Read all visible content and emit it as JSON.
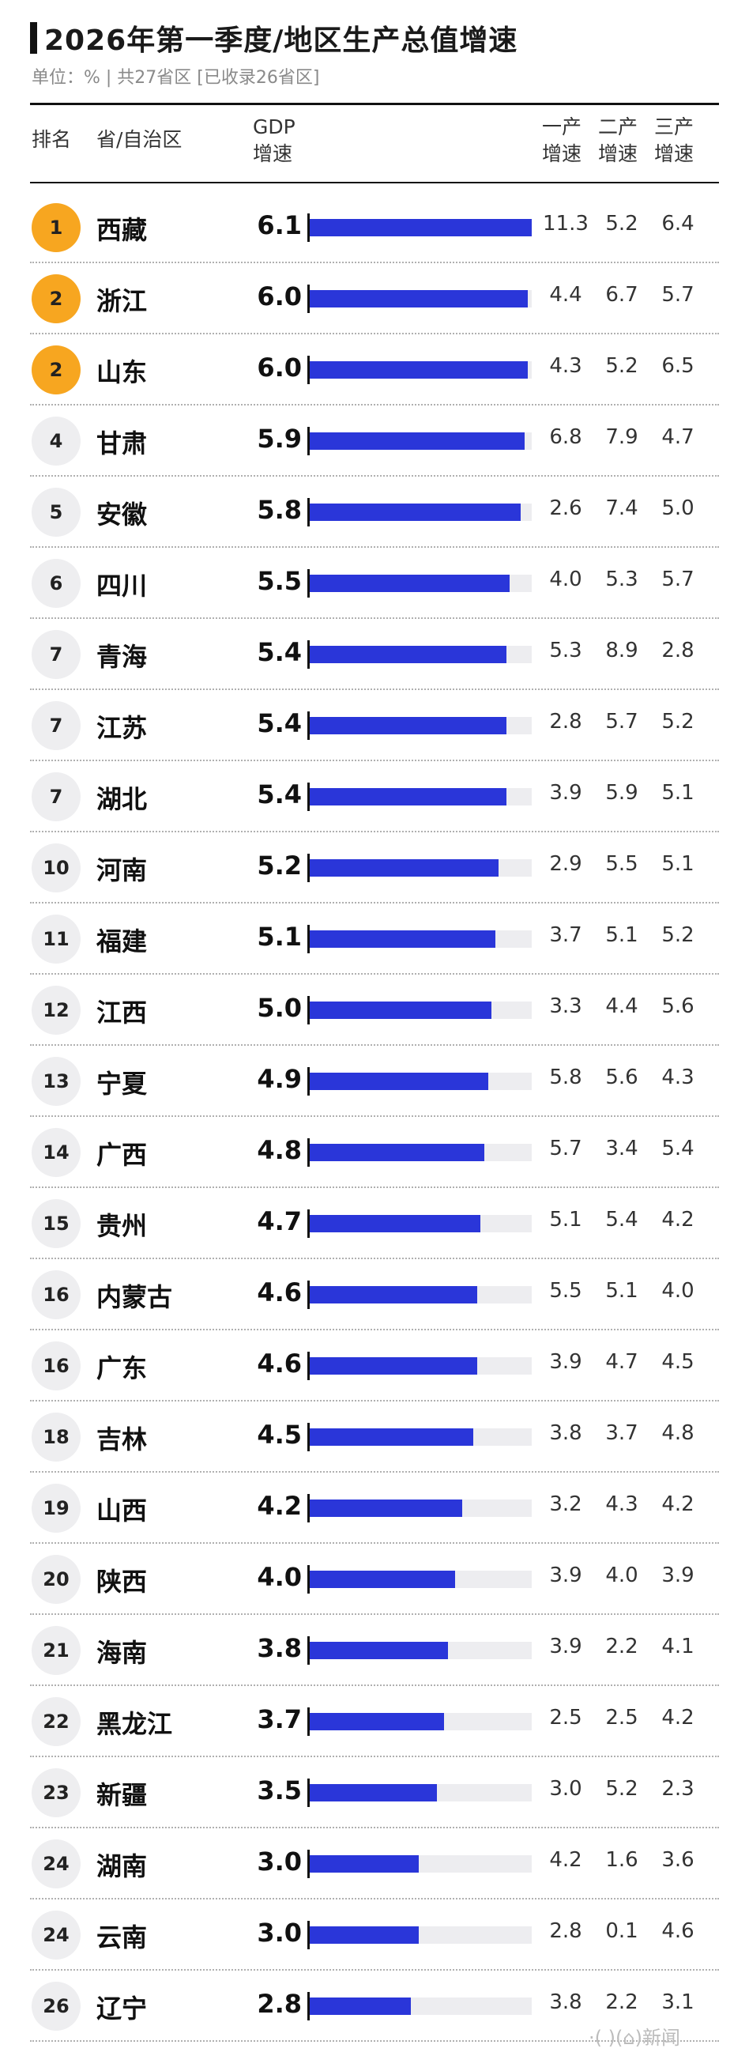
{
  "title": "2026年第一季度/地区生产总值增速",
  "subtitle": "单位：% | 共27省区 [已收录26省区]",
  "headers": {
    "rank": "排名",
    "province": "省/自治区",
    "gdp_line1": "GDP",
    "gdp_line2": "增速",
    "primary_line1": "一产",
    "primary_line2": "增速",
    "secondary_line1": "二产",
    "secondary_line2": "增速",
    "tertiary_line1": "三产",
    "tertiary_line2": "增速"
  },
  "watermark": "·( )(⌂)新闻",
  "colors": {
    "bar": "#2a36d9",
    "track": "#ededf0",
    "gold_badge": "#f7a620",
    "grey_badge": "#eeeef0"
  },
  "chart_data": {
    "type": "bar",
    "orientation": "horizontal",
    "xlim": [
      0,
      6.1
    ],
    "rows": [
      {
        "rank": "1",
        "province": "西藏",
        "gdp": 6.1,
        "gdp_label": "6.1",
        "primary": "11.3",
        "secondary": "5.2",
        "tertiary": "6.4",
        "highlight": true
      },
      {
        "rank": "2",
        "province": "浙江",
        "gdp": 6.0,
        "gdp_label": "6.0",
        "primary": "4.4",
        "secondary": "6.7",
        "tertiary": "5.7",
        "highlight": true
      },
      {
        "rank": "2",
        "province": "山东",
        "gdp": 6.0,
        "gdp_label": "6.0",
        "primary": "4.3",
        "secondary": "5.2",
        "tertiary": "6.5",
        "highlight": true
      },
      {
        "rank": "4",
        "province": "甘肃",
        "gdp": 5.9,
        "gdp_label": "5.9",
        "primary": "6.8",
        "secondary": "7.9",
        "tertiary": "4.7",
        "highlight": false
      },
      {
        "rank": "5",
        "province": "安徽",
        "gdp": 5.8,
        "gdp_label": "5.8",
        "primary": "2.6",
        "secondary": "7.4",
        "tertiary": "5.0",
        "highlight": false
      },
      {
        "rank": "6",
        "province": "四川",
        "gdp": 5.5,
        "gdp_label": "5.5",
        "primary": "4.0",
        "secondary": "5.3",
        "tertiary": "5.7",
        "highlight": false
      },
      {
        "rank": "7",
        "province": "青海",
        "gdp": 5.4,
        "gdp_label": "5.4",
        "primary": "5.3",
        "secondary": "8.9",
        "tertiary": "2.8",
        "highlight": false
      },
      {
        "rank": "7",
        "province": "江苏",
        "gdp": 5.4,
        "gdp_label": "5.4",
        "primary": "2.8",
        "secondary": "5.7",
        "tertiary": "5.2",
        "highlight": false
      },
      {
        "rank": "7",
        "province": "湖北",
        "gdp": 5.4,
        "gdp_label": "5.4",
        "primary": "3.9",
        "secondary": "5.9",
        "tertiary": "5.1",
        "highlight": false
      },
      {
        "rank": "10",
        "province": "河南",
        "gdp": 5.2,
        "gdp_label": "5.2",
        "primary": "2.9",
        "secondary": "5.5",
        "tertiary": "5.1",
        "highlight": false
      },
      {
        "rank": "11",
        "province": "福建",
        "gdp": 5.1,
        "gdp_label": "5.1",
        "primary": "3.7",
        "secondary": "5.1",
        "tertiary": "5.2",
        "highlight": false
      },
      {
        "rank": "12",
        "province": "江西",
        "gdp": 5.0,
        "gdp_label": "5.0",
        "primary": "3.3",
        "secondary": "4.4",
        "tertiary": "5.6",
        "highlight": false
      },
      {
        "rank": "13",
        "province": "宁夏",
        "gdp": 4.9,
        "gdp_label": "4.9",
        "primary": "5.8",
        "secondary": "5.6",
        "tertiary": "4.3",
        "highlight": false
      },
      {
        "rank": "14",
        "province": "广西",
        "gdp": 4.8,
        "gdp_label": "4.8",
        "primary": "5.7",
        "secondary": "3.4",
        "tertiary": "5.4",
        "highlight": false
      },
      {
        "rank": "15",
        "province": "贵州",
        "gdp": 4.7,
        "gdp_label": "4.7",
        "primary": "5.1",
        "secondary": "5.4",
        "tertiary": "4.2",
        "highlight": false
      },
      {
        "rank": "16",
        "province": "内蒙古",
        "gdp": 4.6,
        "gdp_label": "4.6",
        "primary": "5.5",
        "secondary": "5.1",
        "tertiary": "4.0",
        "highlight": false
      },
      {
        "rank": "16",
        "province": "广东",
        "gdp": 4.6,
        "gdp_label": "4.6",
        "primary": "3.9",
        "secondary": "4.7",
        "tertiary": "4.5",
        "highlight": false
      },
      {
        "rank": "18",
        "province": "吉林",
        "gdp": 4.5,
        "gdp_label": "4.5",
        "primary": "3.8",
        "secondary": "3.7",
        "tertiary": "4.8",
        "highlight": false
      },
      {
        "rank": "19",
        "province": "山西",
        "gdp": 4.2,
        "gdp_label": "4.2",
        "primary": "3.2",
        "secondary": "4.3",
        "tertiary": "4.2",
        "highlight": false
      },
      {
        "rank": "20",
        "province": "陕西",
        "gdp": 4.0,
        "gdp_label": "4.0",
        "primary": "3.9",
        "secondary": "4.0",
        "tertiary": "3.9",
        "highlight": false
      },
      {
        "rank": "21",
        "province": "海南",
        "gdp": 3.8,
        "gdp_label": "3.8",
        "primary": "3.9",
        "secondary": "2.2",
        "tertiary": "4.1",
        "highlight": false
      },
      {
        "rank": "22",
        "province": "黑龙江",
        "gdp": 3.7,
        "gdp_label": "3.7",
        "primary": "2.5",
        "secondary": "2.5",
        "tertiary": "4.2",
        "highlight": false
      },
      {
        "rank": "23",
        "province": "新疆",
        "gdp": 3.5,
        "gdp_label": "3.5",
        "primary": "3.0",
        "secondary": "5.2",
        "tertiary": "2.3",
        "highlight": false
      },
      {
        "rank": "24",
        "province": "湖南",
        "gdp": 3.0,
        "gdp_label": "3.0",
        "primary": "4.2",
        "secondary": "1.6",
        "tertiary": "3.6",
        "highlight": false
      },
      {
        "rank": "24",
        "province": "云南",
        "gdp": 3.0,
        "gdp_label": "3.0",
        "primary": "2.8",
        "secondary": "0.1",
        "tertiary": "4.6",
        "highlight": false
      },
      {
        "rank": "26",
        "province": "辽宁",
        "gdp": 2.8,
        "gdp_label": "2.8",
        "primary": "3.8",
        "secondary": "2.2",
        "tertiary": "3.1",
        "highlight": false
      }
    ]
  }
}
